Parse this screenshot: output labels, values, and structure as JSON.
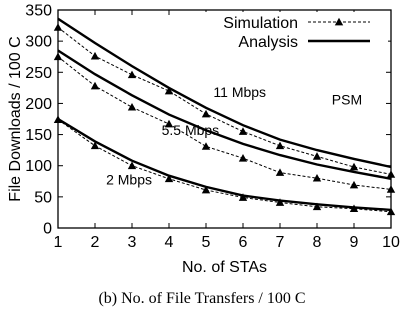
{
  "caption": "(b) No. of File Transfers / 100 C",
  "chart_data": {
    "type": "line",
    "xlabel": "No. of STAs",
    "ylabel": "File Downloads / 100 C",
    "xlim": [
      1,
      10
    ],
    "ylim": [
      0,
      350
    ],
    "xticks": [
      1,
      2,
      3,
      4,
      5,
      6,
      7,
      8,
      9,
      10
    ],
    "yticks": [
      0,
      50,
      100,
      150,
      200,
      250,
      300,
      350
    ],
    "grid": false,
    "legend": {
      "position": "top-right",
      "entries": [
        {
          "label": "Simulation",
          "style": "dashed-triangle"
        },
        {
          "label": "Analysis",
          "style": "solid"
        }
      ]
    },
    "annotations": [
      {
        "text": "11 Mbps",
        "x": 5.2,
        "y": 210
      },
      {
        "text": "PSM",
        "x": 8.4,
        "y": 198
      },
      {
        "text": "5.5 Mbps",
        "x": 3.8,
        "y": 149
      },
      {
        "text": "2 Mbps",
        "x": 2.3,
        "y": 70
      }
    ],
    "x": [
      1,
      2,
      3,
      4,
      5,
      6,
      7,
      8,
      9,
      10
    ],
    "series": [
      {
        "group": "11 Mbps",
        "kind": "Analysis",
        "values": [
          336,
          297,
          260,
          225,
          193,
          165,
          142,
          125,
          111,
          98
        ]
      },
      {
        "group": "11 Mbps",
        "kind": "Simulation",
        "values": [
          322,
          276,
          246,
          220,
          183,
          155,
          132,
          115,
          98,
          86
        ]
      },
      {
        "group": "5.5 Mbps",
        "kind": "Analysis",
        "values": [
          285,
          247,
          213,
          182,
          157,
          135,
          117,
          102,
          90,
          79
        ]
      },
      {
        "group": "5.5 Mbps",
        "kind": "Simulation",
        "values": [
          275,
          228,
          194,
          167,
          131,
          112,
          89,
          80,
          69,
          62
        ]
      },
      {
        "group": "2 Mbps",
        "kind": "Analysis",
        "values": [
          175,
          139,
          108,
          84,
          66,
          52,
          44,
          38,
          33,
          29
        ]
      },
      {
        "group": "2 Mbps",
        "kind": "Simulation",
        "values": [
          174,
          132,
          100,
          79,
          61,
          49,
          41,
          34,
          31,
          26
        ]
      }
    ]
  }
}
